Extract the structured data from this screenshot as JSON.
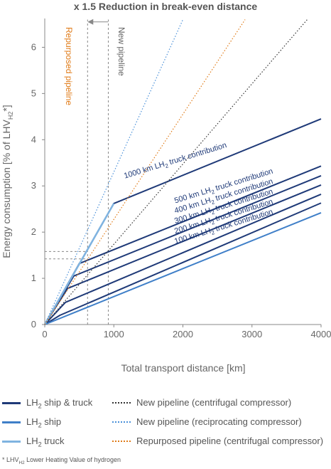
{
  "chart_data": {
    "type": "line",
    "title": "x 1.5 Reduction in break-even distance",
    "xlabel": "Total transport distance [km]",
    "ylabel": "Energy consumption [% of LHV",
    "ylabel_sub": "H2",
    "ylabel_end": "*]",
    "xlim": [
      0,
      4000
    ],
    "ylim": [
      0,
      6.5
    ],
    "xticks": [
      "0",
      "1000",
      "2000",
      "3000",
      "4000"
    ],
    "yticks": [
      "0",
      "1",
      "2",
      "3",
      "4",
      "5",
      "6"
    ],
    "colors": {
      "ship_truck": "#1f3a78",
      "ship": "#3f7fc8",
      "truck": "#7fb3e0",
      "new_pipeline_centrifugal": "#333333",
      "new_pipeline_reciprocating": "#4a90d9",
      "repurposed_pipeline": "#e07b18",
      "guides": "#888888"
    },
    "series": [
      {
        "name": "LH2 ship & truck",
        "key": "ship_truck_100",
        "style": "solid",
        "x": [
          0,
          220,
          4000
        ],
        "y": [
          0,
          0.2,
          2.63
        ]
      },
      {
        "name": "LH2 ship & truck",
        "key": "ship_truck_200",
        "style": "solid",
        "x": [
          0,
          300,
          4000
        ],
        "y": [
          0,
          0.48,
          2.82
        ]
      },
      {
        "name": "LH2 ship & truck",
        "key": "ship_truck_300",
        "style": "solid",
        "x": [
          0,
          330,
          4000
        ],
        "y": [
          0,
          0.78,
          3.02
        ]
      },
      {
        "name": "LH2 ship & truck",
        "key": "ship_truck_400",
        "style": "solid",
        "x": [
          0,
          420,
          4000
        ],
        "y": [
          0,
          1.05,
          3.22
        ]
      },
      {
        "name": "LH2 ship & truck",
        "key": "ship_truck_500",
        "style": "solid",
        "x": [
          0,
          500,
          4000
        ],
        "y": [
          0,
          1.32,
          3.43
        ]
      },
      {
        "name": "LH2 ship & truck",
        "key": "ship_truck_1000",
        "style": "solid",
        "x": [
          0,
          1000,
          4000
        ],
        "y": [
          0,
          2.62,
          4.45
        ]
      },
      {
        "name": "LH2 ship",
        "key": "ship",
        "style": "solid",
        "x": [
          0,
          4000
        ],
        "y": [
          0,
          2.42
        ]
      },
      {
        "name": "LH2 truck",
        "key": "truck",
        "style": "solid",
        "x": [
          0,
          1000
        ],
        "y": [
          0,
          2.62
        ]
      },
      {
        "name": "New pipeline (centrifugal compressor)",
        "key": "pipe_centrifugal",
        "style": "dotted",
        "x": [
          0,
          3800
        ],
        "y": [
          0,
          6.6
        ]
      },
      {
        "name": "New pipeline (reciprocating compressor)",
        "key": "pipe_reciprocating",
        "style": "dotted",
        "x": [
          0,
          2000
        ],
        "y": [
          0,
          6.6
        ]
      },
      {
        "name": "Repurposed pipeline (centrifugal compressor)",
        "key": "pipe_repurposed",
        "style": "dotted",
        "x": [
          0,
          2900
        ],
        "y": [
          0,
          6.6
        ]
      }
    ],
    "annotations": [
      {
        "key": "a1000",
        "text": "1000 km LH",
        "sub": "2",
        "tail": " truck contribution",
        "at": [
          1900,
          3.5
        ]
      },
      {
        "key": "a500",
        "text": "500 km LH",
        "sub": "2",
        "tail": " truck contribution",
        "at": [
          2600,
          2.95
        ]
      },
      {
        "key": "a400",
        "text": "400 km LH",
        "sub": "2",
        "tail": " truck contribution",
        "at": [
          2600,
          2.73
        ]
      },
      {
        "key": "a300",
        "text": "300 km LH",
        "sub": "2",
        "tail": " truck contribution",
        "at": [
          2600,
          2.51
        ]
      },
      {
        "key": "a200",
        "text": "200 km LH",
        "sub": "2",
        "tail": " truck contribution",
        "at": [
          2600,
          2.29
        ]
      },
      {
        "key": "a100",
        "text": "100 km LH",
        "sub": "2",
        "tail": " truck contribution",
        "at": [
          2600,
          2.07
        ]
      }
    ],
    "vertical_labels": [
      {
        "key": "new_pipeline",
        "text": "New pipeline",
        "color": "#666666"
      },
      {
        "key": "repurposed",
        "text": "Repurposed pipeline",
        "color": "#e07b18"
      }
    ],
    "guides": {
      "vlines_x": [
        620,
        920
      ],
      "hlines_y": [
        1.42,
        1.58
      ],
      "arrow": {
        "from_x": 920,
        "to_x": 620,
        "y": 6.55
      }
    }
  },
  "legend": [
    {
      "label": "LH",
      "sub": "2",
      "tail": " ship & truck",
      "color": "#1f3a78",
      "style": "solid"
    },
    {
      "label": "LH",
      "sub": "2",
      "tail": " ship",
      "color": "#3f7fc8",
      "style": "solid"
    },
    {
      "label": "LH",
      "sub": "2",
      "tail": " truck",
      "color": "#7fb3e0",
      "style": "solid"
    },
    {
      "label": "New pipeline (centrifugal compressor)",
      "sub": "",
      "tail": "",
      "color": "#333333",
      "style": "dotted"
    },
    {
      "label": "New pipeline (reciprocating compressor)",
      "sub": "",
      "tail": "",
      "color": "#4a90d9",
      "style": "dotted"
    },
    {
      "label": "Repurposed pipeline (centrifugal compressor)",
      "sub": "",
      "tail": "",
      "color": "#e07b18",
      "style": "dotted"
    }
  ],
  "footnote": {
    "star": "* LHV",
    "sub": "H2",
    "text": " Lower Heating Value of hydrogen"
  }
}
